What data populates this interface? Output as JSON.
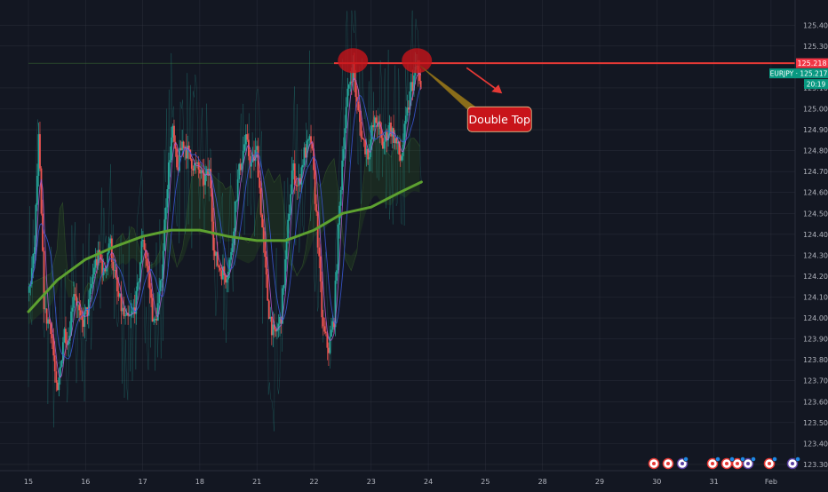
{
  "chart_data": {
    "type": "candlestick",
    "symbol": "EURJPY",
    "price_axis": {
      "ylim": [
        123.27,
        125.52
      ],
      "ticks": [
        "125.400",
        "125.300",
        "125.100",
        "125.000",
        "124.900",
        "124.800",
        "124.700",
        "124.600",
        "124.500",
        "124.400",
        "124.300",
        "124.200",
        "124.100",
        "124.000",
        "123.900",
        "123.800",
        "123.700",
        "123.600",
        "123.500",
        "123.400",
        "123.300"
      ],
      "current_price": 125.218,
      "current_price_label": "125.218",
      "symbol_price_label": "EURJPY · 125.217",
      "countdown_label": "20:19"
    },
    "time_axis": {
      "ticks": [
        {
          "label": "15",
          "slot": 0
        },
        {
          "label": "16",
          "slot": 1
        },
        {
          "label": "17",
          "slot": 2
        },
        {
          "label": "18",
          "slot": 3
        },
        {
          "label": "21",
          "slot": 4
        },
        {
          "label": "22",
          "slot": 5
        },
        {
          "label": "23",
          "slot": 6
        },
        {
          "label": "24",
          "slot": 7
        },
        {
          "label": "25",
          "slot": 8
        },
        {
          "label": "28",
          "slot": 9
        },
        {
          "label": "29",
          "slot": 10
        },
        {
          "label": "30",
          "slot": 11
        },
        {
          "label": "31",
          "slot": 12
        },
        {
          "label": "Feb",
          "slot": 13
        }
      ]
    },
    "price_path": [
      [
        0,
        124.12
      ],
      [
        0.1,
        124.3
      ],
      [
        0.18,
        124.86
      ],
      [
        0.28,
        124.02
      ],
      [
        0.4,
        123.96
      ],
      [
        0.5,
        123.6
      ],
      [
        0.62,
        123.94
      ],
      [
        0.7,
        123.9
      ],
      [
        0.8,
        124.15
      ],
      [
        0.92,
        123.96
      ],
      [
        1.05,
        124.05
      ],
      [
        1.15,
        124.25
      ],
      [
        1.25,
        124.3
      ],
      [
        1.32,
        124.2
      ],
      [
        1.42,
        124.38
      ],
      [
        1.55,
        124.12
      ],
      [
        1.7,
        123.98
      ],
      [
        1.8,
        124.0
      ],
      [
        1.9,
        124.1
      ],
      [
        2.0,
        124.4
      ],
      [
        2.1,
        124.2
      ],
      [
        2.2,
        123.95
      ],
      [
        2.32,
        124.15
      ],
      [
        2.42,
        124.62
      ],
      [
        2.52,
        124.9
      ],
      [
        2.6,
        124.7
      ],
      [
        2.7,
        124.85
      ],
      [
        2.8,
        124.78
      ],
      [
        2.92,
        124.72
      ],
      [
        3.0,
        124.7
      ],
      [
        3.05,
        124.65
      ],
      [
        3.18,
        124.7
      ],
      [
        3.25,
        124.3
      ],
      [
        3.33,
        124.25
      ],
      [
        3.45,
        124.2
      ],
      [
        3.55,
        124.3
      ],
      [
        3.62,
        124.55
      ],
      [
        3.7,
        124.72
      ],
      [
        3.8,
        124.85
      ],
      [
        3.9,
        124.73
      ],
      [
        4.0,
        124.8
      ],
      [
        4.1,
        124.4
      ],
      [
        4.2,
        124.05
      ],
      [
        4.3,
        123.9
      ],
      [
        4.42,
        124.0
      ],
      [
        4.52,
        124.35
      ],
      [
        4.62,
        124.72
      ],
      [
        4.72,
        124.62
      ],
      [
        4.82,
        124.78
      ],
      [
        4.95,
        124.85
      ],
      [
        5.05,
        124.45
      ],
      [
        5.15,
        123.95
      ],
      [
        5.25,
        123.85
      ],
      [
        5.35,
        124.0
      ],
      [
        5.42,
        124.4
      ],
      [
        5.5,
        124.8
      ],
      [
        5.6,
        125.1
      ],
      [
        5.68,
        125.2
      ],
      [
        5.75,
        125.02
      ],
      [
        5.85,
        124.85
      ],
      [
        5.95,
        124.78
      ],
      [
        6.02,
        124.9
      ],
      [
        6.1,
        124.95
      ],
      [
        6.2,
        124.82
      ],
      [
        6.32,
        124.92
      ],
      [
        6.42,
        124.85
      ],
      [
        6.52,
        124.75
      ],
      [
        6.6,
        124.92
      ],
      [
        6.7,
        125.1
      ],
      [
        6.8,
        125.2
      ],
      [
        6.88,
        125.05
      ]
    ],
    "ma_long": [
      [
        0,
        124.03
      ],
      [
        0.5,
        124.18
      ],
      [
        1.0,
        124.28
      ],
      [
        1.5,
        124.34
      ],
      [
        2.0,
        124.39
      ],
      [
        2.5,
        124.42
      ],
      [
        3.0,
        124.42
      ],
      [
        3.5,
        124.39
      ],
      [
        4.0,
        124.37
      ],
      [
        4.5,
        124.37
      ],
      [
        5.0,
        124.42
      ],
      [
        5.5,
        124.5
      ],
      [
        6.0,
        124.53
      ],
      [
        6.5,
        124.6
      ],
      [
        6.88,
        124.65
      ]
    ],
    "annotations": {
      "resistance_price": 125.218,
      "label": "Double Top",
      "tops": [
        {
          "slot": 5.68,
          "price": 125.23
        },
        {
          "slot": 6.8,
          "price": 125.23
        }
      ]
    },
    "colors": {
      "background": "#131722",
      "grid": "#363a45",
      "bull": "#26a69a",
      "bear": "#ef5350",
      "ma_long": "#5da130",
      "resistance": "#e53935",
      "price_badge": "#f23645",
      "symbol_badge": "#089981",
      "annotation_fill": "#c8141a",
      "annotation_text": "#ffffff",
      "axis_text": "#b2b5be"
    }
  }
}
